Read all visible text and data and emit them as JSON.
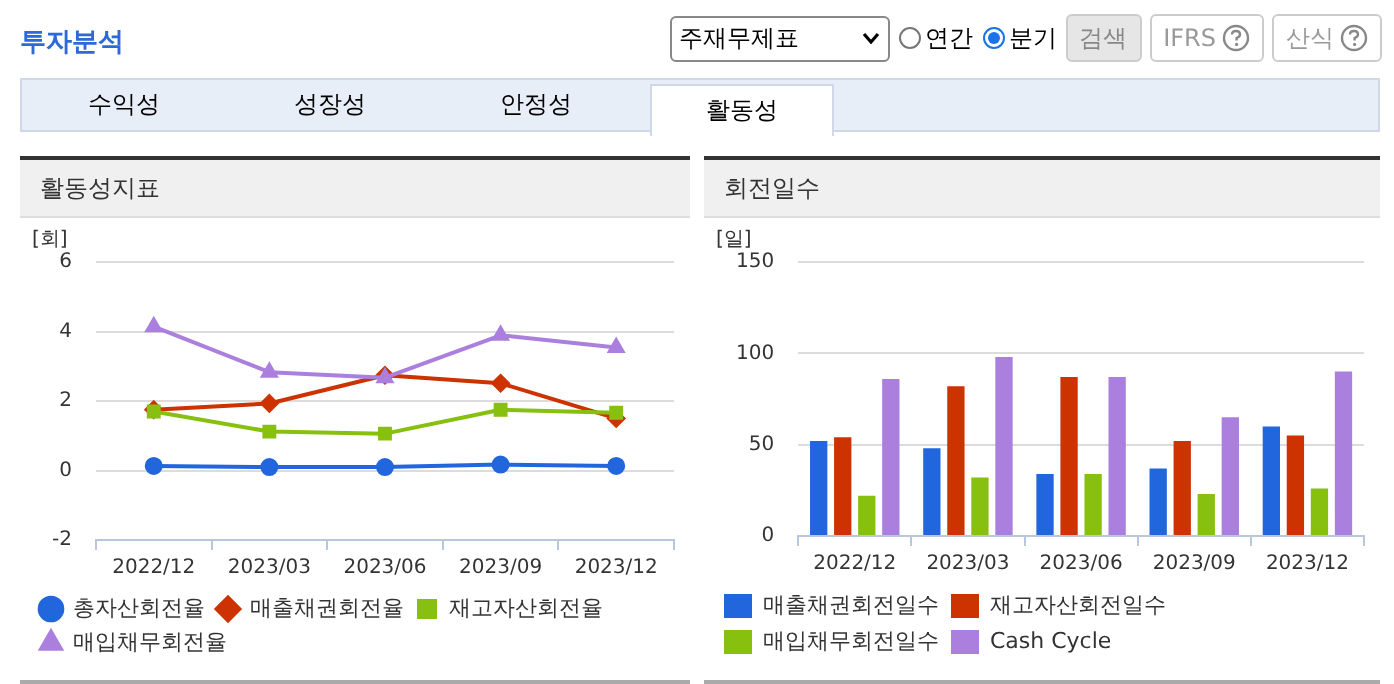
{
  "chart_data": [
    {
      "type": "other",
      "title": "투자분석",
      "annotations": [
        "주재무제표",
        "연간",
        "분기",
        "검색",
        "IFRS",
        "산식",
        "수익성",
        "성장성",
        "안정성",
        "활동성"
      ]
    },
    {
      "type": "line",
      "title": "활동성지표",
      "ylabel": "[회]",
      "categories": [
        "2022/12",
        "2023/03",
        "2023/06",
        "2023/09",
        "2023/12"
      ],
      "ylim": [
        -2,
        6
      ],
      "yticks": [
        -2,
        0,
        2,
        4,
        6
      ],
      "grid": "y",
      "legend": "bottom",
      "series": [
        {
          "name": "총자산회전율",
          "color": "#2266dd",
          "marker": "circle",
          "values": [
            0.13,
            0.1,
            0.1,
            0.17,
            0.13
          ]
        },
        {
          "name": "매출채권회전율",
          "color": "#cc3300",
          "marker": "diamond",
          "values": [
            1.75,
            1.93,
            2.74,
            2.51,
            1.5
          ]
        },
        {
          "name": "재고자산회전율",
          "color": "#88c00f",
          "marker": "square",
          "values": [
            1.7,
            1.12,
            1.06,
            1.75,
            1.66
          ]
        },
        {
          "name": "매입채무회전율",
          "color": "#aa7fdd",
          "marker": "triangle",
          "values": [
            4.14,
            2.83,
            2.67,
            3.89,
            3.54
          ]
        }
      ]
    },
    {
      "type": "bar",
      "title": "회전일수",
      "ylabel": "[일]",
      "categories": [
        "2022/12",
        "2023/03",
        "2023/06",
        "2023/09",
        "2023/12"
      ],
      "ylim": [
        0,
        150
      ],
      "yticks": [
        0,
        50,
        100,
        150
      ],
      "grid": "y",
      "legend": "bottom",
      "series": [
        {
          "name": "매출채권회전일수",
          "color": "#2266dd",
          "values": [
            52,
            48,
            34,
            37,
            60
          ]
        },
        {
          "name": "재고자산회전일수",
          "color": "#cc3300",
          "values": [
            54,
            82,
            87,
            52,
            55
          ]
        },
        {
          "name": "매입채무회전일수",
          "color": "#88c00f",
          "values": [
            22,
            32,
            34,
            23,
            26
          ]
        },
        {
          "name": "Cash Cycle",
          "color": "#aa7fdd",
          "values": [
            86,
            98,
            87,
            65,
            90
          ]
        }
      ]
    }
  ]
}
